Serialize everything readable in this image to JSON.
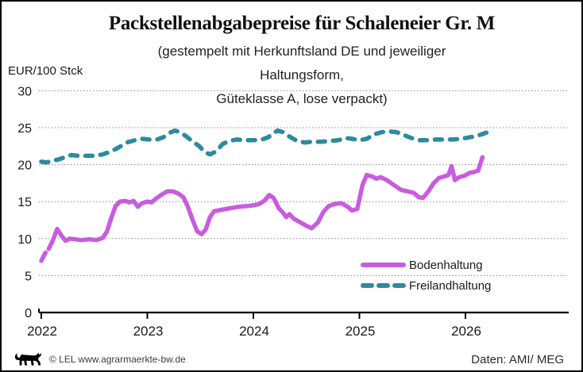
{
  "header": {
    "title": "Packstellenabgabepreise für Schaleneier Gr. M",
    "subtitle_line1": "(gestempelt mit Herkunftsland DE und jeweiliger",
    "subtitle_line2": "Haltungsform,",
    "subtitle_line3": "Güteklasse A, lose verpackt)"
  },
  "footer": {
    "logo": "baden-wuerttemberg-lion",
    "copyright": "© LEL www.agrarmaerkte-bw.de",
    "source": "Daten: AMI/ MEG"
  },
  "colors": {
    "bodenhaltung": "#c75dde",
    "freilandhaltung": "#2e8a9e",
    "gridline": "#8a8a8a",
    "axis": "#000000"
  },
  "chart_data": {
    "type": "line",
    "title": "Packstellenabgabepreise für Schaleneier Gr. M",
    "subtitle": "(gestempelt mit Herkunftsland DE und jeweiliger Haltungsform, Güteklasse A, lose verpackt)",
    "ylabel_unit": "EUR/100 Stck",
    "ylim": [
      0,
      30
    ],
    "xlim": [
      2022,
      2026.97
    ],
    "y_ticks": [
      0,
      5,
      10,
      15,
      20,
      25,
      30
    ],
    "x_ticks": [
      2022,
      2023,
      2024,
      2025,
      2026
    ],
    "grid": "horizontal-dotted",
    "legend_position": "inside-bottom-right",
    "series": [
      {
        "name": "Bodenhaltung",
        "style": "solid",
        "color": "#c75dde",
        "segments": [
          [
            [
              2022.0,
              7.0
            ],
            [
              2022.04,
              8.1
            ]
          ],
          [
            [
              2022.07,
              8.6
            ],
            [
              2022.11,
              9.8
            ],
            [
              2022.15,
              11.3
            ],
            [
              2022.19,
              10.4
            ],
            [
              2022.23,
              9.7
            ],
            [
              2022.27,
              10.0
            ],
            [
              2022.32,
              9.9
            ],
            [
              2022.38,
              9.8
            ],
            [
              2022.45,
              9.9
            ],
            [
              2022.52,
              9.8
            ],
            [
              2022.58,
              10.1
            ],
            [
              2022.62,
              11.0
            ],
            [
              2022.66,
              12.8
            ],
            [
              2022.7,
              14.4
            ],
            [
              2022.74,
              15.0
            ],
            [
              2022.79,
              15.1
            ],
            [
              2022.83,
              14.9
            ],
            [
              2022.87,
              15.1
            ],
            [
              2022.91,
              14.3
            ],
            [
              2022.95,
              14.8
            ],
            [
              2023.0,
              15.0
            ],
            [
              2023.04,
              14.9
            ],
            [
              2023.09,
              15.5
            ],
            [
              2023.14,
              16.0
            ],
            [
              2023.19,
              16.4
            ],
            [
              2023.24,
              16.4
            ],
            [
              2023.29,
              16.1
            ],
            [
              2023.34,
              15.6
            ],
            [
              2023.38,
              14.4
            ],
            [
              2023.43,
              12.4
            ],
            [
              2023.47,
              11.0
            ],
            [
              2023.51,
              10.6
            ],
            [
              2023.55,
              11.2
            ],
            [
              2023.59,
              12.9
            ],
            [
              2023.63,
              13.7
            ],
            [
              2023.7,
              13.9
            ],
            [
              2023.78,
              14.1
            ],
            [
              2023.86,
              14.3
            ],
            [
              2023.94,
              14.4
            ],
            [
              2024.0,
              14.5
            ],
            [
              2024.06,
              14.7
            ],
            [
              2024.11,
              15.2
            ],
            [
              2024.15,
              15.9
            ],
            [
              2024.19,
              15.5
            ],
            [
              2024.24,
              14.1
            ],
            [
              2024.28,
              13.5
            ],
            [
              2024.31,
              12.9
            ],
            [
              2024.34,
              13.3
            ],
            [
              2024.38,
              12.7
            ],
            [
              2024.43,
              12.3
            ],
            [
              2024.49,
              11.8
            ],
            [
              2024.55,
              11.4
            ],
            [
              2024.61,
              12.2
            ],
            [
              2024.66,
              13.6
            ],
            [
              2024.71,
              14.4
            ],
            [
              2024.77,
              14.7
            ],
            [
              2024.83,
              14.8
            ],
            [
              2024.89,
              14.3
            ],
            [
              2024.93,
              13.8
            ],
            [
              2024.98,
              14.0
            ],
            [
              2025.03,
              17.3
            ],
            [
              2025.07,
              18.6
            ],
            [
              2025.12,
              18.4
            ],
            [
              2025.16,
              18.1
            ],
            [
              2025.2,
              18.3
            ],
            [
              2025.26,
              17.9
            ],
            [
              2025.32,
              17.3
            ],
            [
              2025.39,
              16.6
            ],
            [
              2025.45,
              16.4
            ],
            [
              2025.51,
              16.2
            ],
            [
              2025.56,
              15.6
            ],
            [
              2025.6,
              15.5
            ],
            [
              2025.65,
              16.4
            ],
            [
              2025.7,
              17.5
            ],
            [
              2025.75,
              18.2
            ],
            [
              2025.8,
              18.4
            ],
            [
              2025.84,
              18.6
            ],
            [
              2025.87,
              19.8
            ],
            [
              2025.9,
              17.9
            ],
            [
              2025.94,
              18.3
            ],
            [
              2025.99,
              18.5
            ],
            [
              2026.04,
              18.9
            ],
            [
              2026.08,
              19.0
            ],
            [
              2026.12,
              19.2
            ],
            [
              2026.16,
              21.0
            ]
          ]
        ]
      },
      {
        "name": "Freilandhaltung",
        "style": "dashed",
        "color": "#2e8a9e",
        "segments": [
          [
            [
              2022.0,
              20.4
            ],
            [
              2022.05,
              20.3
            ],
            [
              2022.1,
              20.5
            ],
            [
              2022.16,
              20.7
            ],
            [
              2022.22,
              21.0
            ],
            [
              2022.28,
              21.3
            ],
            [
              2022.35,
              21.2
            ],
            [
              2022.43,
              21.2
            ],
            [
              2022.51,
              21.2
            ],
            [
              2022.58,
              21.4
            ],
            [
              2022.64,
              21.7
            ],
            [
              2022.7,
              22.1
            ],
            [
              2022.75,
              22.5
            ],
            [
              2022.81,
              23.0
            ],
            [
              2022.88,
              23.3
            ],
            [
              2022.95,
              23.5
            ],
            [
              2023.02,
              23.4
            ],
            [
              2023.09,
              23.4
            ],
            [
              2023.15,
              23.7
            ],
            [
              2023.21,
              24.3
            ],
            [
              2023.26,
              24.6
            ],
            [
              2023.31,
              24.4
            ],
            [
              2023.37,
              23.8
            ],
            [
              2023.43,
              23.1
            ],
            [
              2023.49,
              22.5
            ],
            [
              2023.54,
              21.7
            ],
            [
              2023.59,
              21.4
            ],
            [
              2023.65,
              21.8
            ],
            [
              2023.71,
              22.8
            ],
            [
              2023.77,
              23.2
            ],
            [
              2023.84,
              23.4
            ],
            [
              2023.92,
              23.3
            ],
            [
              2024.0,
              23.3
            ],
            [
              2024.08,
              23.4
            ],
            [
              2024.14,
              23.7
            ],
            [
              2024.19,
              24.3
            ],
            [
              2024.23,
              24.6
            ],
            [
              2024.28,
              24.4
            ],
            [
              2024.33,
              23.9
            ],
            [
              2024.4,
              23.3
            ],
            [
              2024.48,
              23.0
            ],
            [
              2024.56,
              23.1
            ],
            [
              2024.64,
              23.1
            ],
            [
              2024.72,
              23.2
            ],
            [
              2024.8,
              23.3
            ],
            [
              2024.87,
              23.6
            ],
            [
              2024.93,
              23.5
            ],
            [
              2025.0,
              23.3
            ],
            [
              2025.07,
              23.5
            ],
            [
              2025.14,
              24.1
            ],
            [
              2025.21,
              24.4
            ],
            [
              2025.28,
              24.5
            ],
            [
              2025.35,
              24.4
            ],
            [
              2025.42,
              24.0
            ],
            [
              2025.49,
              23.6
            ],
            [
              2025.56,
              23.3
            ],
            [
              2025.64,
              23.3
            ],
            [
              2025.72,
              23.4
            ],
            [
              2025.8,
              23.4
            ],
            [
              2025.88,
              23.4
            ],
            [
              2025.96,
              23.5
            ],
            [
              2026.04,
              23.7
            ],
            [
              2026.11,
              23.9
            ],
            [
              2026.17,
              24.2
            ],
            [
              2026.23,
              24.5
            ]
          ]
        ]
      }
    ]
  },
  "legend": {
    "items": [
      {
        "label": "Bodenhaltung"
      },
      {
        "label": "Freilandhaltung"
      }
    ]
  }
}
